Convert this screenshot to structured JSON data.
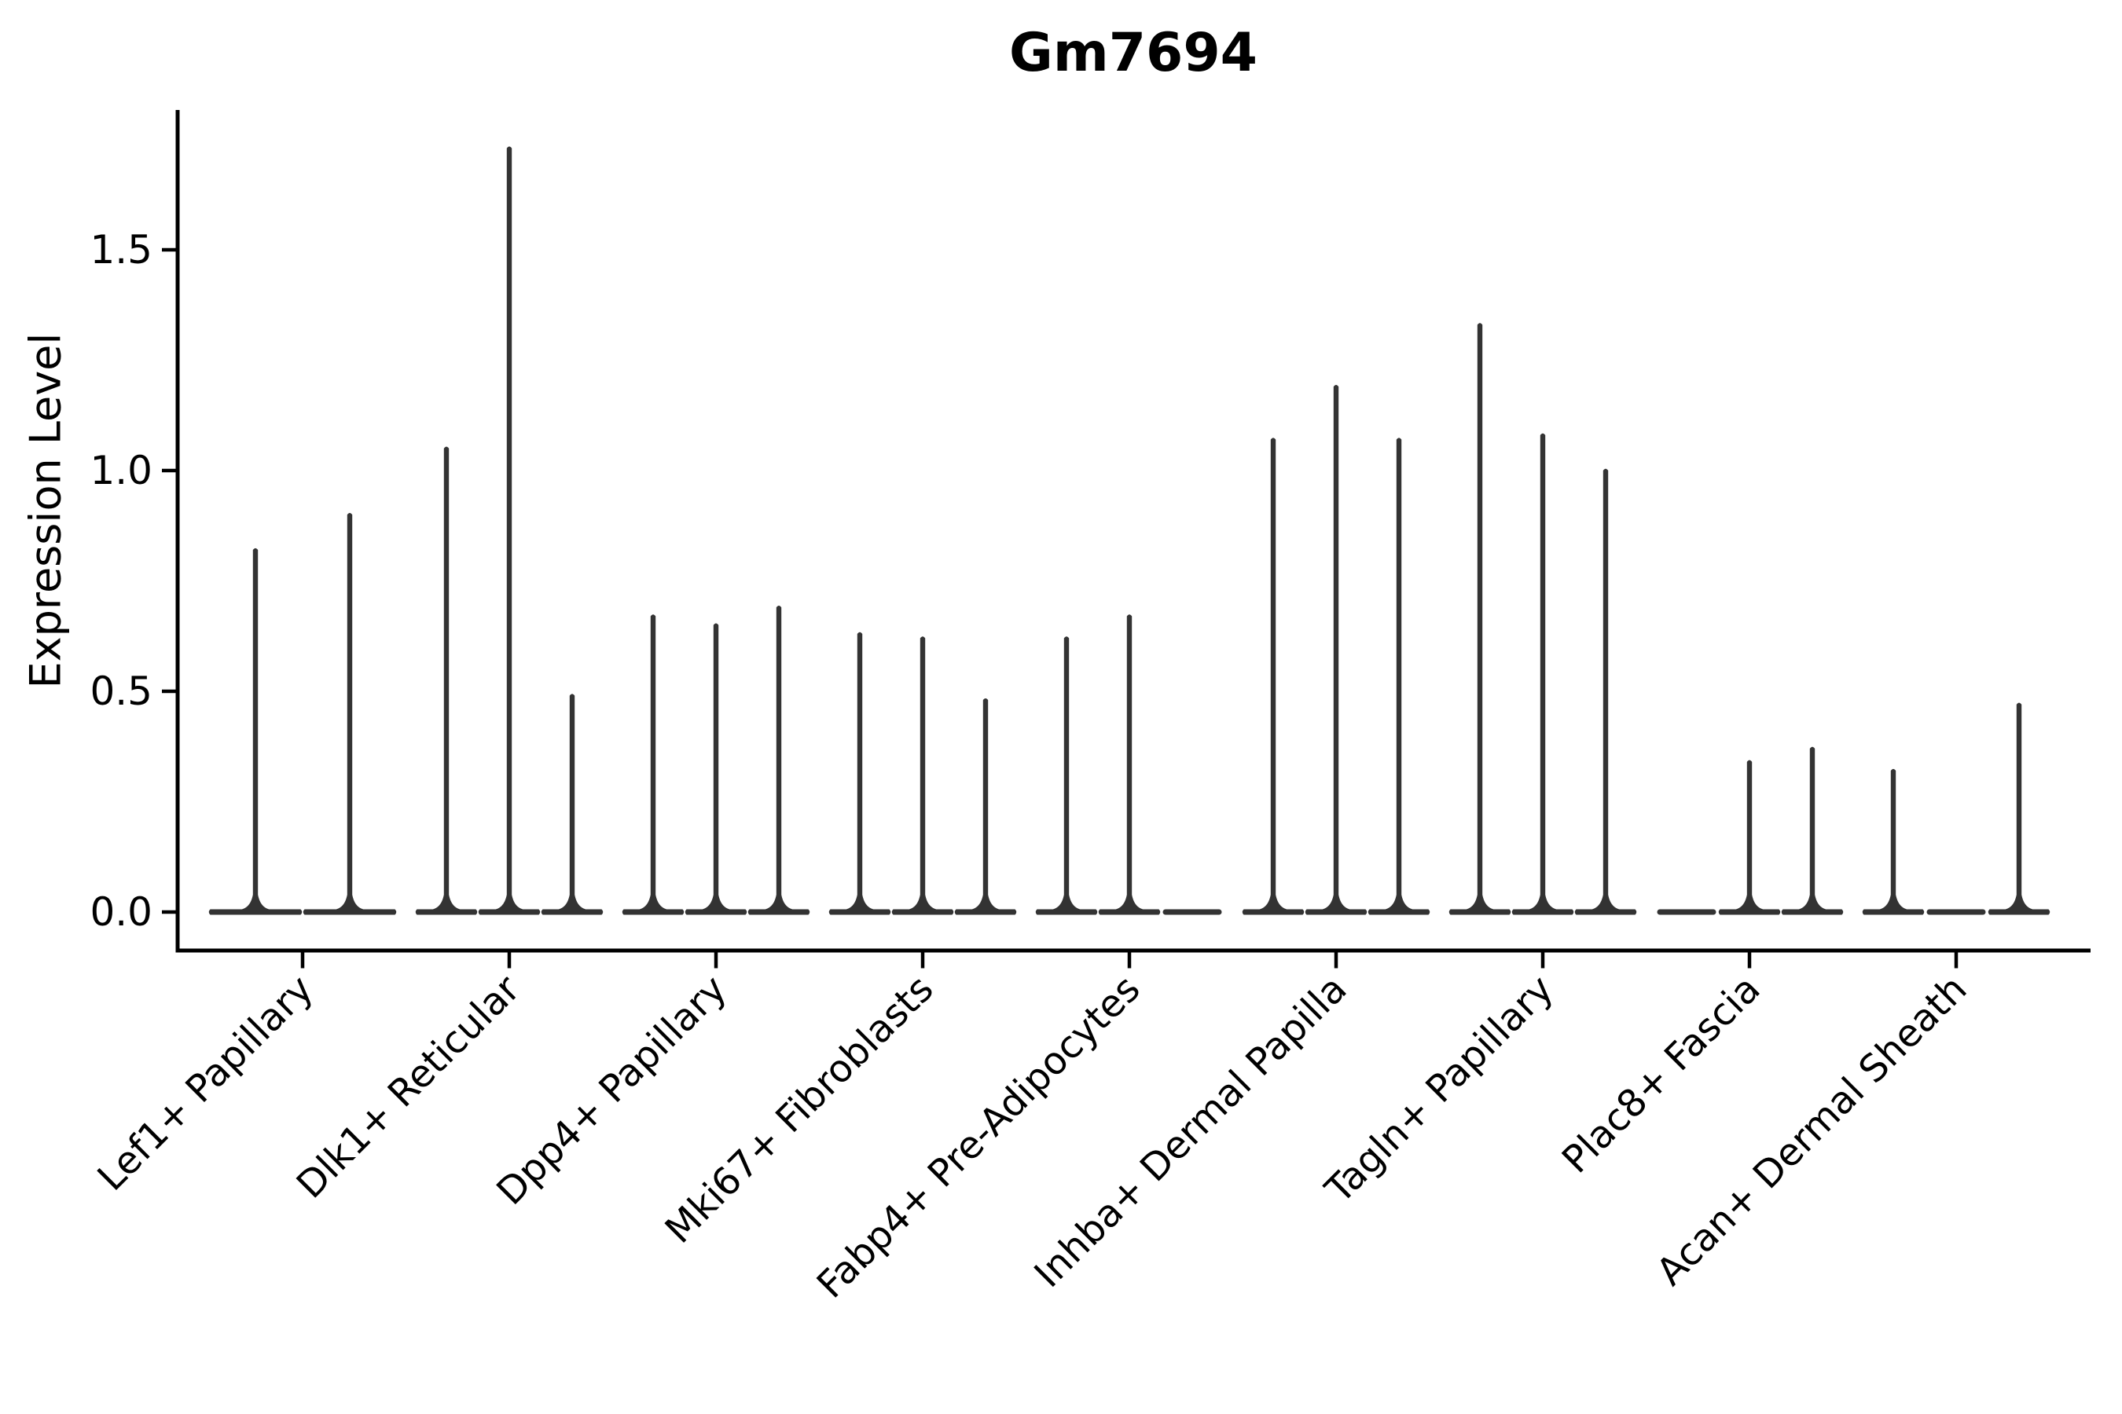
{
  "figure": {
    "background": "#ffffff"
  },
  "chart_data": {
    "type": "violin",
    "title": "Gm7694",
    "ylabel": "Expression Level",
    "xlabel": "",
    "grid": false,
    "legend": "none",
    "axis_color": "#000000",
    "violin_color": "#333333",
    "ylim": [
      0,
      1.82
    ],
    "ytick_values": [
      0.0,
      0.5,
      1.0,
      1.5
    ],
    "ytick_labels": [
      "0.0",
      "0.5",
      "1.0",
      "1.5"
    ],
    "description": "Violin plot of Gm7694 expression; each category holds 2-3 very thin spike-shaped violins whose mass sits at 0 (wide flat base) with a narrow stem rising to the listed maximum expression value; 0 means a flat all-zero violin.",
    "categories": [
      {
        "label": "Lef1+ Papillary",
        "violin_maxima": [
          0.82,
          0.9
        ]
      },
      {
        "label": "Dlk1+ Reticular",
        "violin_maxima": [
          1.05,
          1.73,
          0.49
        ]
      },
      {
        "label": "Dpp4+ Papillary",
        "violin_maxima": [
          0.67,
          0.65,
          0.69
        ]
      },
      {
        "label": "Mki67+ Fibroblasts",
        "violin_maxima": [
          0.63,
          0.62,
          0.48
        ]
      },
      {
        "label": "Fabp4+ Pre-Adipocytes",
        "violin_maxima": [
          0.62,
          0.67,
          0.0
        ]
      },
      {
        "label": "Inhba+ Dermal Papilla",
        "violin_maxima": [
          1.07,
          1.19,
          1.07
        ]
      },
      {
        "label": "Tagln+ Papillary",
        "violin_maxima": [
          1.33,
          1.08,
          1.0
        ]
      },
      {
        "label": "Plac8+ Fascia",
        "violin_maxima": [
          0.0,
          0.34,
          0.37
        ]
      },
      {
        "label": "Acan+ Dermal Sheath",
        "violin_maxima": [
          0.32,
          0.0,
          0.47
        ]
      }
    ]
  }
}
